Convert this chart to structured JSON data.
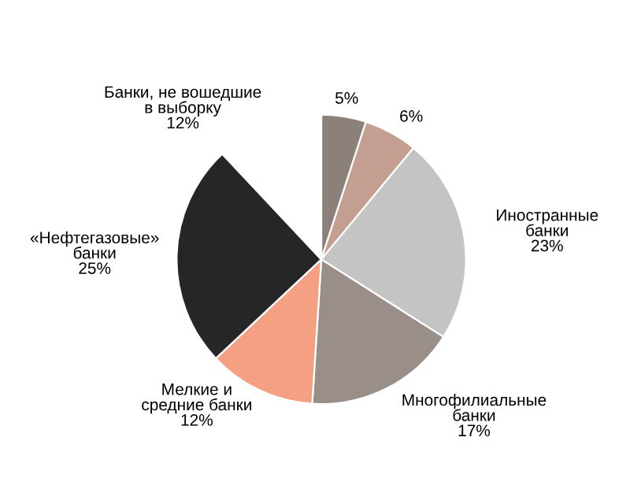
{
  "chart_data": {
    "type": "pie",
    "categories": [
      null,
      null,
      "Иностранные\nбанки",
      "Многофилиальные\nбанки",
      "Мелкие и\nсредние банки",
      "«Нефтегазовые»\nбанки",
      "Банки, не вошедшие\nв выборку"
    ],
    "values": [
      5,
      6,
      23,
      17,
      12,
      25,
      12
    ],
    "value_labels": [
      "5%",
      "6%",
      "23%",
      "17%",
      "12%",
      "25%",
      "12%"
    ],
    "colors": [
      "#8c807a",
      "#c49e90",
      "#c4c4c4",
      "#9a8e88",
      "#f5a082",
      "#262626",
      "#ffffff"
    ]
  }
}
